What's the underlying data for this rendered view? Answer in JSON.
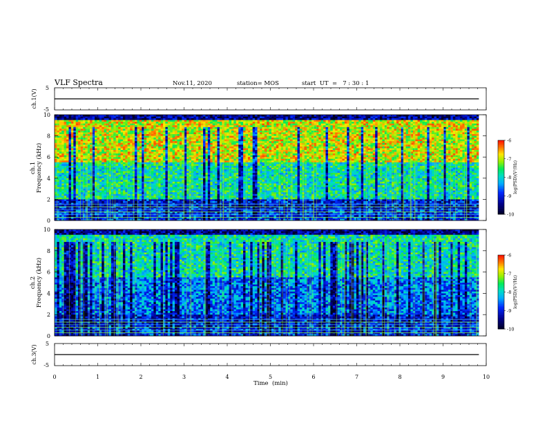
{
  "header": {
    "title": "VLF Spectra",
    "date": "Nov.11, 2020",
    "station": "station= MOS",
    "start_ut": "start  UT  =   7 : 30 : 1"
  },
  "colors": {
    "background": "#ffffff",
    "axis": "#000000",
    "spectrogram_low": "#000080",
    "spectrogram_high": "#ff0000"
  },
  "colormap": [
    "#ffffff",
    "#ff2a00",
    "#ffa000",
    "#ffff00",
    "#00ff40",
    "#00d8d8",
    "#00a0ff",
    "#0000ff",
    "#000088"
  ],
  "chart_data": [
    {
      "type": "line",
      "name": "ch1-voltage",
      "ylabel": "ch.1(V)",
      "ylim": [
        -5,
        5
      ],
      "yticks": [
        "5",
        "-5"
      ],
      "x": [
        0,
        9.83
      ],
      "values": [
        0,
        0
      ]
    },
    {
      "type": "heatmap",
      "name": "ch1-spectrogram",
      "ylabel": "ch.1\nFrequency (kHz)",
      "ylim": [
        0,
        10
      ],
      "yticks": [
        "0",
        "2",
        "4",
        "6",
        "8",
        "10"
      ],
      "xlim": [
        0,
        10
      ],
      "x_data_end": 9.83,
      "colorbar": {
        "label": "log(PSD)(V²/Hz)",
        "range": [
          -10,
          -6
        ],
        "ticks": [
          "-6",
          "-7",
          "-8",
          "-9",
          "-10"
        ]
      }
    },
    {
      "type": "heatmap",
      "name": "ch2-spectrogram",
      "ylabel": "ch.2\nFrequency (kHz)",
      "ylim": [
        0,
        10
      ],
      "yticks": [
        "0",
        "2",
        "4",
        "6",
        "8",
        "10"
      ],
      "xlim": [
        0,
        10
      ],
      "x_data_end": 9.83,
      "colorbar": {
        "label": "log(PSD)(V²/Hz)",
        "range": [
          -10,
          -6
        ],
        "ticks": [
          "-6",
          "-7",
          "-8",
          "-9",
          "-10"
        ]
      }
    },
    {
      "type": "line",
      "name": "ch3-voltage",
      "ylabel": "ch.3(V)",
      "ylim": [
        -5,
        5
      ],
      "yticks": [
        "5",
        "-5"
      ],
      "x": [
        0,
        9.83
      ],
      "values": [
        0,
        0
      ]
    }
  ],
  "xaxis": {
    "label": "Time  (min)",
    "ticks": [
      "0",
      "1",
      "2",
      "3",
      "4",
      "5",
      "6",
      "7",
      "8",
      "9",
      "10"
    ],
    "xlim": [
      0,
      10
    ]
  }
}
